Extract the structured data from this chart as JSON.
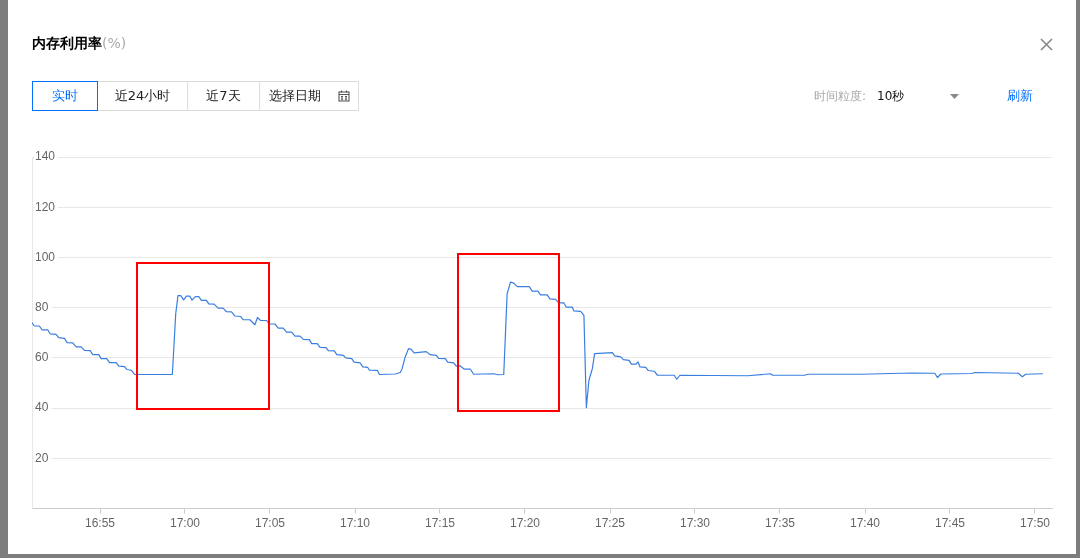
{
  "chart_data": {
    "type": "line",
    "title": "内存利用率",
    "subtitle": "(%)",
    "annotations": [
      "实时",
      "近24小时",
      "近7天",
      "选择日期",
      "时间粒度:",
      "10秒",
      "刷新"
    ],
    "x": [
      16.85,
      16.8523,
      16.8572,
      16.8599,
      16.8654,
      16.8677,
      16.8736,
      16.8762,
      16.8818,
      16.8844,
      16.8899,
      16.8933,
      16.8982,
      16.9014,
      16.907,
      16.9096,
      16.9155,
      16.9178,
      16.9233,
      16.926,
      16.9326,
      16.9351,
      16.9407,
      16.943,
      16.9473,
      16.9506,
      16.9876,
      16.9909,
      16.9931,
      16.9958,
      16.9987,
      17.0014,
      17.0046,
      17.0069,
      17.0102,
      17.0135,
      17.0161,
      17.021,
      17.0233,
      17.0285,
      17.0324,
      17.0373,
      17.0407,
      17.0456,
      17.0488,
      17.0544,
      17.057,
      17.0636,
      17.0685,
      17.0711,
      17.0741,
      17.08,
      17.0825,
      17.0881,
      17.0914,
      17.0963,
      17.0996,
      17.1046,
      17.1078,
      17.1127,
      17.116,
      17.1219,
      17.1242,
      17.1297,
      17.1324,
      17.1383,
      17.1405,
      17.1464,
      17.1488,
      17.1553,
      17.1576,
      17.1635,
      17.1658,
      17.1717,
      17.1743,
      17.1792,
      17.1808,
      17.1887,
      17.1906,
      17.2061,
      17.211,
      17.2127,
      17.2159,
      17.2191,
      17.2218,
      17.2247,
      17.2365,
      17.2405,
      17.2464,
      17.2486,
      17.2552,
      17.2575,
      17.2634,
      17.266,
      17.2699,
      17.2739,
      17.2798,
      17.283,
      17.3027,
      17.3066,
      17.3125,
      17.3158,
      17.3191,
      17.3223,
      17.3257,
      17.3375,
      17.3404,
      17.3459,
      17.3486,
      17.3551,
      17.3577,
      17.3633,
      17.3666,
      17.3715,
      17.3738,
      17.3797,
      17.3813,
      17.3879,
      17.3911,
      17.3935,
      17.396,
      17.3994,
      17.4016,
      17.419,
      17.4213,
      17.4272,
      17.4298,
      17.4353,
      17.4377,
      17.4419,
      17.4442,
      17.4461,
      17.4517,
      17.454,
      17.4599,
      17.4632,
      17.4796,
      17.4822,
      17.4852,
      17.5517,
      17.5739,
      17.5763,
      17.6073,
      17.6107,
      17.663,
      17.7122,
      17.7351,
      17.7377,
      17.741,
      17.7711,
      17.7744,
      17.817,
      17.8209,
      17.8242,
      17.8406
    ],
    "values": [
      74.0,
      72.7,
      72.7,
      71.2,
      71.2,
      69.6,
      69.4,
      68.1,
      67.8,
      66.1,
      66.0,
      64.4,
      64.4,
      63.0,
      62.9,
      61.3,
      61.3,
      59.7,
      59.7,
      58.1,
      58.1,
      56.7,
      56.5,
      55.4,
      55.1,
      53.4,
      53.4,
      77.6,
      84.8,
      84.8,
      83.1,
      84.6,
      84.6,
      83.0,
      84.4,
      84.4,
      82.9,
      82.9,
      81.5,
      81.4,
      79.8,
      79.8,
      78.4,
      78.3,
      76.7,
      76.5,
      75.2,
      75.2,
      73.2,
      76.1,
      74.9,
      74.9,
      73.5,
      73.5,
      71.9,
      71.9,
      70.3,
      70.3,
      68.7,
      68.7,
      67.4,
      67.3,
      65.7,
      65.7,
      64.2,
      64.1,
      62.9,
      62.8,
      61.3,
      61.0,
      60.0,
      59.7,
      58.3,
      58.0,
      56.4,
      56.2,
      55.1,
      55.0,
      53.4,
      53.6,
      54.2,
      55.5,
      60.4,
      63.7,
      63.4,
      62.0,
      62.5,
      61.3,
      61.0,
      59.8,
      59.7,
      58.3,
      58.0,
      56.7,
      56.8,
      55.5,
      55.5,
      53.5,
      53.7,
      53.3,
      53.4,
      85.5,
      90.2,
      89.8,
      88.4,
      88.4,
      86.6,
      86.6,
      85.1,
      85.1,
      83.5,
      83.3,
      81.9,
      81.9,
      80.2,
      80.2,
      78.7,
      78.5,
      76.9,
      40.2,
      51.1,
      55.8,
      61.7,
      62.1,
      60.8,
      60.4,
      59.3,
      59.0,
      57.5,
      57.5,
      58.4,
      56.4,
      56.2,
      55.0,
      54.7,
      53.1,
      53.1,
      51.5,
      53.1,
      52.9,
      53.7,
      53.1,
      53.1,
      53.5,
      53.5,
      54.0,
      53.9,
      52.2,
      53.6,
      53.8,
      54.2,
      53.9,
      52.5,
      53.5,
      53.7
    ],
    "color": "#3a7fe0",
    "xlim": [
      16.85,
      17.85
    ],
    "xticks": [
      {
        "value": 16.916667,
        "label": "16:55"
      },
      {
        "value": 17.0,
        "label": "17:00"
      },
      {
        "value": 17.083333,
        "label": "17:05"
      },
      {
        "value": 17.166667,
        "label": "17:10"
      },
      {
        "value": 17.25,
        "label": "17:15"
      },
      {
        "value": 17.333333,
        "label": "17:20"
      },
      {
        "value": 17.416667,
        "label": "17:25"
      },
      {
        "value": 17.5,
        "label": "17:30"
      },
      {
        "value": 17.583333,
        "label": "17:35"
      },
      {
        "value": 17.666667,
        "label": "17:40"
      },
      {
        "value": 17.75,
        "label": "17:45"
      },
      {
        "value": 17.833333,
        "label": "17:50"
      }
    ],
    "ylim": [
      0,
      140
    ],
    "yticks": [
      20,
      40,
      60,
      80,
      100,
      120,
      140
    ],
    "grid": "y",
    "marker": "none",
    "line_style": "solid"
  }
}
